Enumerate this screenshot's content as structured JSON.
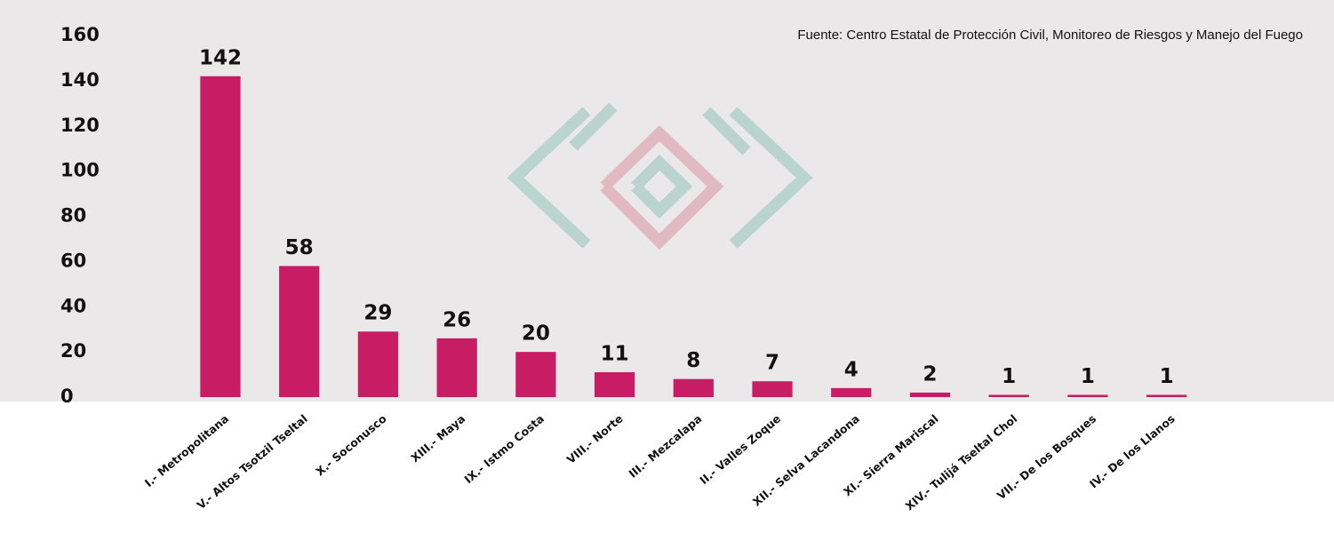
{
  "chart_data": {
    "type": "bar",
    "source": "Fuente: Centro Estatal de Protección Civil, Monitoreo de Riesgos y Manejo del Fuego",
    "categories": [
      "I.- Metropolitana",
      "V.- Altos Tsotzil Tseltal",
      "X.- Soconusco",
      "XIII.- Maya",
      "IX.- Istmo Costa",
      "VIII.- Norte",
      "III.- Mezcalapa",
      "II.- Valles Zoque",
      "XII.- Selva Lacandona",
      "XI.- Sierra Mariscal",
      "XIV.- Tulijá Tseltal Chol",
      "VII.- De los Bosques",
      "IV.- De los Llanos"
    ],
    "values": [
      142,
      58,
      29,
      26,
      20,
      11,
      8,
      7,
      4,
      2,
      1,
      1,
      1
    ],
    "color": "#c81d64",
    "ylim": [
      0,
      160
    ],
    "yticks": [
      0,
      20,
      40,
      60,
      80,
      100,
      120,
      140,
      160
    ],
    "grid": false
  }
}
